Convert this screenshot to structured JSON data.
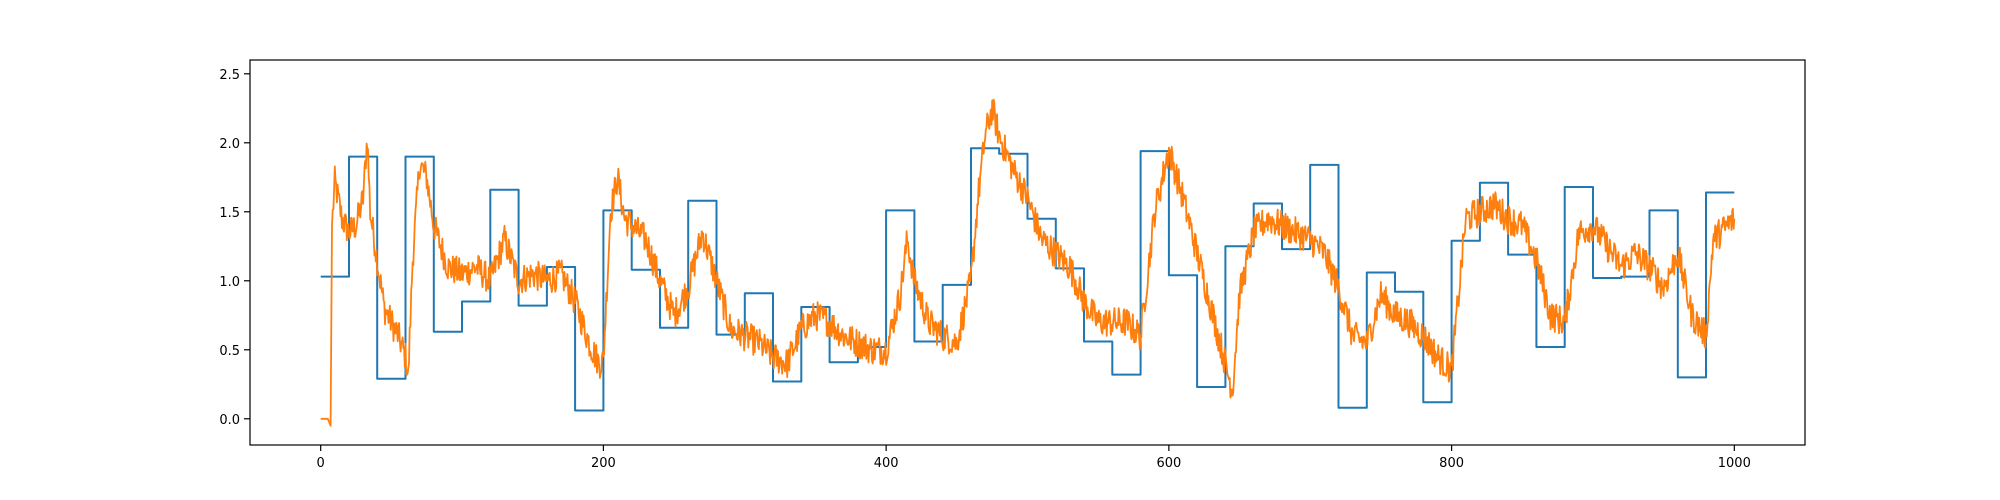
{
  "chart_data": {
    "type": "line",
    "title": "",
    "xlabel": "",
    "ylabel": "",
    "xlim": [
      -50,
      1050
    ],
    "ylim": [
      -0.19,
      2.6
    ],
    "grid": false,
    "legend": "none",
    "x_ticks": [
      0,
      200,
      400,
      600,
      800,
      1000
    ],
    "x_tick_labels": [
      "0",
      "200",
      "400",
      "600",
      "800",
      "1000"
    ],
    "y_ticks": [
      0.0,
      0.5,
      1.0,
      1.5,
      2.0,
      2.5
    ],
    "y_tick_labels": [
      "0.0",
      "0.5",
      "1.0",
      "1.5",
      "2.0",
      "2.5"
    ],
    "series": [
      {
        "color": "#1f77b4",
        "style": "step",
        "x": [
          0,
          20,
          40,
          60,
          80,
          100,
          120,
          140,
          160,
          180,
          200,
          220,
          240,
          260,
          280,
          300,
          320,
          340,
          360,
          380,
          400,
          420,
          440,
          460,
          480,
          500,
          520,
          540,
          560,
          580,
          600,
          620,
          640,
          660,
          680,
          700,
          720,
          740,
          760,
          780,
          800,
          820,
          840,
          860,
          880,
          900,
          920,
          940,
          960,
          980,
          1000
        ],
        "y": [
          1.03,
          1.9,
          0.29,
          1.9,
          0.63,
          0.85,
          1.66,
          0.82,
          1.1,
          0.06,
          1.51,
          1.08,
          0.66,
          1.58,
          0.61,
          0.91,
          0.27,
          0.81,
          0.41,
          0.52,
          1.51,
          0.56,
          0.97,
          1.96,
          1.92,
          1.45,
          1.09,
          0.56,
          0.32,
          1.94,
          1.04,
          0.23,
          1.25,
          1.56,
          1.23,
          1.84,
          0.08,
          1.06,
          0.92,
          0.12,
          1.29,
          1.71,
          1.19,
          0.52,
          1.68,
          1.02,
          1.03,
          1.51,
          0.3,
          1.64,
          1.64
        ]
      },
      {
        "color": "#ff7f0e",
        "style": "noisy-line",
        "x": [
          0,
          5,
          7,
          8,
          10,
          15,
          20,
          25,
          30,
          33,
          35,
          40,
          45,
          50,
          55,
          60,
          62,
          65,
          70,
          75,
          80,
          85,
          90,
          100,
          110,
          120,
          130,
          140,
          150,
          160,
          170,
          180,
          190,
          197,
          200,
          205,
          210,
          215,
          220,
          230,
          240,
          250,
          260,
          270,
          280,
          290,
          300,
          310,
          320,
          330,
          340,
          350,
          360,
          370,
          380,
          390,
          400,
          410,
          415,
          420,
          430,
          440,
          450,
          460,
          465,
          470,
          475,
          480,
          490,
          500,
          510,
          520,
          530,
          540,
          550,
          560,
          570,
          580,
          590,
          600,
          610,
          620,
          630,
          640,
          645,
          650,
          660,
          670,
          680,
          690,
          700,
          710,
          720,
          730,
          740,
          750,
          760,
          770,
          780,
          790,
          800,
          810,
          820,
          830,
          840,
          850,
          860,
          870,
          880,
          890,
          900,
          910,
          920,
          930,
          940,
          950,
          960,
          970,
          980,
          985,
          990,
          1000
        ],
        "y": [
          0.0,
          0.0,
          -0.05,
          1.4,
          1.72,
          1.45,
          1.35,
          1.4,
          1.6,
          2.05,
          1.5,
          1.15,
          0.8,
          0.7,
          0.6,
          0.45,
          0.3,
          1.15,
          1.85,
          1.75,
          1.4,
          1.25,
          1.1,
          1.05,
          1.1,
          1.0,
          1.3,
          1.0,
          1.05,
          1.0,
          1.05,
          0.85,
          0.55,
          0.4,
          0.42,
          1.5,
          1.75,
          1.45,
          1.4,
          1.3,
          1.0,
          0.75,
          0.95,
          1.35,
          1.0,
          0.65,
          0.6,
          0.55,
          0.45,
          0.4,
          0.65,
          0.75,
          0.7,
          0.6,
          0.55,
          0.5,
          0.5,
          0.9,
          1.3,
          1.0,
          0.7,
          0.6,
          0.55,
          1.0,
          1.6,
          2.05,
          2.25,
          2.05,
          1.8,
          1.6,
          1.3,
          1.2,
          1.1,
          0.85,
          0.7,
          0.7,
          0.7,
          0.6,
          1.5,
          1.95,
          1.6,
          1.2,
          0.8,
          0.4,
          0.2,
          0.9,
          1.35,
          1.45,
          1.4,
          1.35,
          1.3,
          1.2,
          0.95,
          0.6,
          0.55,
          0.9,
          0.75,
          0.7,
          0.6,
          0.45,
          0.35,
          1.45,
          1.5,
          1.55,
          1.45,
          1.4,
          1.15,
          0.75,
          0.7,
          1.35,
          1.4,
          1.25,
          1.1,
          1.2,
          1.1,
          0.95,
          1.2,
          0.75,
          0.6,
          1.3,
          1.35,
          1.45
        ]
      }
    ]
  }
}
